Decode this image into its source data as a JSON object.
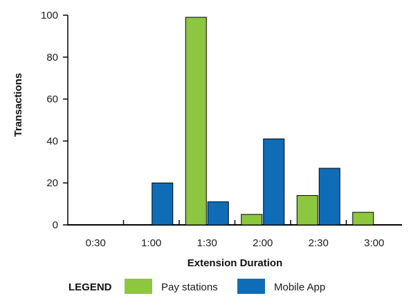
{
  "chart_data": {
    "type": "bar",
    "title": "",
    "xlabel": "Extension Duration",
    "ylabel": "Transactions",
    "ylim": [
      0,
      100
    ],
    "yticks": [
      "0",
      "20",
      "40",
      "60",
      "80",
      "100"
    ],
    "categories": [
      "0:30",
      "1:00",
      "1:30",
      "2:00",
      "2:30",
      "3:00"
    ],
    "series": [
      {
        "name": "Pay stations",
        "color": "#8dc63f",
        "values": [
          0,
          0,
          99,
          5,
          14,
          6
        ]
      },
      {
        "name": "Mobile App",
        "color": "#0f6db8",
        "values": [
          0,
          20,
          11,
          41,
          27,
          0
        ]
      }
    ],
    "grid": false,
    "legend": {
      "title": "LEGEND",
      "placement": "bottom"
    }
  }
}
